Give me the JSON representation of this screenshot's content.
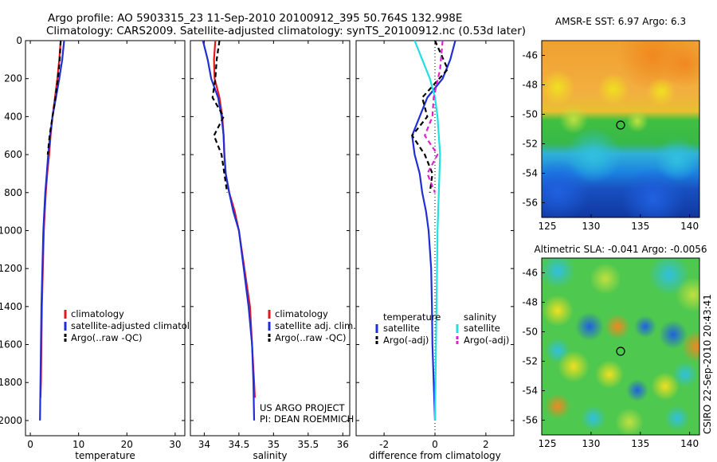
{
  "header": {
    "line1": "Argo profile: AO 5903315_23 11-Sep-2010 20100912_395 50.764S 132.998E",
    "line2": "Climatology: CARS2009. Satellite-adjusted climatology: synTS_20100912.nc (0.53d later)"
  },
  "side_credit": "CSIRO 22-Sep-2010 20:43:41",
  "project_credit": [
    "US ARGO PROJECT",
    "PI: DEAN ROEMMICH"
  ],
  "colors": {
    "climatology": "#e8171c",
    "satellite": "#1f2fd6",
    "argo": "#000000",
    "salinity_satellite": "#22e0e0",
    "salinity_argo": "#e020d0"
  },
  "chart_data": [
    {
      "type": "line",
      "name": "temperature-profile",
      "xlabel": "temperature",
      "xlim": [
        -1,
        32
      ],
      "ylim": [
        2080,
        0
      ],
      "xticks": [
        0,
        10,
        20,
        30
      ],
      "yticks": [
        0,
        200,
        400,
        600,
        800,
        1000,
        1200,
        1400,
        1600,
        1800,
        2000
      ],
      "legend": [
        "climatology",
        "satellite-adjusted climatology",
        "Argo(..raw -QC)"
      ],
      "series": [
        {
          "name": "climatology",
          "color": "#e8171c",
          "dash": "",
          "x": [
            6.3,
            6.0,
            5.6,
            5.1,
            4.6,
            4.2,
            3.9,
            3.5,
            3.2,
            3.0,
            2.8,
            2.6,
            2.4,
            2.3,
            2.2,
            2.1
          ],
          "y": [
            0,
            100,
            200,
            300,
            400,
            500,
            600,
            700,
            800,
            900,
            1000,
            1200,
            1400,
            1600,
            1800,
            1880
          ]
        },
        {
          "name": "satellite-adjusted climatology",
          "color": "#1f2fd6",
          "dash": "",
          "x": [
            7.0,
            6.6,
            6.0,
            5.3,
            4.6,
            4.1,
            3.7,
            3.4,
            3.1,
            2.9,
            2.7,
            2.5,
            2.3,
            2.2,
            2.1,
            2.0
          ],
          "y": [
            0,
            100,
            200,
            300,
            400,
            500,
            600,
            700,
            800,
            900,
            1000,
            1200,
            1400,
            1600,
            1800,
            2000
          ]
        },
        {
          "name": "Argo(..raw -QC)",
          "color": "#000000",
          "dash": "6,4",
          "x": [
            6.3,
            6.1,
            5.7,
            5.2,
            4.6,
            4.0,
            3.6
          ],
          "y": [
            0,
            100,
            200,
            300,
            400,
            500,
            600
          ]
        }
      ]
    },
    {
      "type": "line",
      "name": "salinity-profile",
      "xlabel": "salinity",
      "xlim": [
        33.8,
        36.1
      ],
      "ylim": [
        2080,
        0
      ],
      "xticks": [
        34,
        34.5,
        35,
        35.5,
        36
      ],
      "xticklabels": [
        "34",
        "34.5",
        "35",
        "35.5",
        "36"
      ],
      "legend": [
        "climatology",
        "satellite adj. clim.",
        "Argo(..raw -QC)"
      ],
      "series": [
        {
          "name": "climatology",
          "color": "#e8171c",
          "dash": "",
          "x": [
            34.16,
            34.14,
            34.15,
            34.22,
            34.26,
            34.28,
            34.29,
            34.31,
            34.36,
            34.44,
            34.5,
            34.58,
            34.66,
            34.69,
            34.72,
            34.73
          ],
          "y": [
            0,
            100,
            200,
            300,
            400,
            500,
            600,
            700,
            800,
            900,
            1000,
            1200,
            1400,
            1600,
            1800,
            1880
          ]
        },
        {
          "name": "satellite adj. clim.",
          "color": "#1f2fd6",
          "dash": "",
          "x": [
            33.98,
            34.05,
            34.1,
            34.2,
            34.25,
            34.28,
            34.29,
            34.31,
            34.36,
            34.42,
            34.5,
            34.57,
            34.64,
            34.69,
            34.71,
            34.72
          ],
          "y": [
            0,
            100,
            200,
            300,
            400,
            500,
            600,
            700,
            800,
            900,
            1000,
            1200,
            1400,
            1600,
            1800,
            2000
          ]
        },
        {
          "name": "Argo(..raw -QC)",
          "color": "#000000",
          "dash": "6,4",
          "x": [
            34.22,
            34.18,
            34.16,
            34.12,
            34.28,
            34.14,
            34.25,
            34.29,
            34.33
          ],
          "y": [
            0,
            100,
            200,
            300,
            400,
            500,
            600,
            700,
            800
          ]
        }
      ]
    },
    {
      "type": "line",
      "name": "difference-profile",
      "xlabel": "difference from climatology",
      "xlim": [
        -3.1,
        3.1
      ],
      "ylim": [
        2080,
        0
      ],
      "xticks": [
        -2,
        0,
        2
      ],
      "legend_left_title": "temperature",
      "legend_right_title": "salinity",
      "legend_left": [
        "satellite",
        "Argo(-adj)"
      ],
      "legend_right": [
        "satellite",
        "Argo(-adj)"
      ],
      "series": [
        {
          "name": "temperature satellite",
          "color": "#1f2fd6",
          "dash": "",
          "x": [
            0.8,
            0.6,
            0.3,
            -0.3,
            -0.6,
            -0.9,
            -0.8,
            -0.6,
            -0.5,
            -0.35,
            -0.25,
            -0.15,
            -0.12,
            -0.1,
            -0.05,
            0.0
          ],
          "y": [
            0,
            100,
            200,
            300,
            400,
            500,
            600,
            700,
            800,
            900,
            1000,
            1200,
            1400,
            1600,
            1800,
            2000
          ]
        },
        {
          "name": "temperature Argo(-adj)",
          "color": "#000000",
          "dash": "6,4",
          "x": [
            0.0,
            0.5,
            -0.5,
            -0.3,
            -0.9,
            -0.4,
            -0.1,
            -0.2
          ],
          "y": [
            0,
            150,
            300,
            400,
            500,
            600,
            700,
            800
          ]
        },
        {
          "name": "salinity satellite",
          "color": "#22e0e0",
          "dash": "",
          "x": [
            -0.8,
            -0.5,
            -0.2,
            0.0,
            0.1,
            0.15,
            0.2,
            0.15,
            0.1,
            0.05,
            0.0
          ],
          "y": [
            0,
            100,
            200,
            300,
            400,
            500,
            600,
            800,
            1000,
            1500,
            2000
          ]
        },
        {
          "name": "salinity Argo(-adj)",
          "color": "#e020d0",
          "dash": "6,4",
          "x": [
            0.3,
            0.2,
            -0.05,
            -0.1,
            -0.4,
            0.1,
            -0.3,
            0.0
          ],
          "y": [
            0,
            150,
            300,
            400,
            500,
            600,
            700,
            800
          ]
        }
      ]
    },
    {
      "type": "heatmap",
      "name": "amsre-sst-map",
      "title": "AMSR-E SST: 6.97  Argo: 6.3",
      "xlim": [
        125,
        141
      ],
      "ylim": [
        -57,
        -45
      ],
      "xticks": [
        125,
        130,
        135,
        140
      ],
      "yticks": [
        -46,
        -48,
        -50,
        -52,
        -54,
        -56
      ],
      "marker": {
        "lon": 133.0,
        "lat": -50.76
      },
      "bands": [
        {
          "lat_top": -45,
          "lat_bottom": -49.5,
          "color": "#f4a020"
        },
        {
          "lat_top": -49.5,
          "lat_bottom": -51.8,
          "color": "#40c040"
        },
        {
          "lat_top": -51.8,
          "lat_bottom": -53.5,
          "color": "#1a90e0"
        },
        {
          "lat_top": -53.5,
          "lat_bottom": -57,
          "color": "#1840b0"
        }
      ]
    },
    {
      "type": "heatmap",
      "name": "altimetric-sla-map",
      "title": "Altimetric SLA: -0.041  Argo: -0.0056",
      "xlim": [
        125,
        141
      ],
      "ylim": [
        -57,
        -45
      ],
      "xticks": [
        125,
        130,
        135,
        140
      ],
      "yticks": [
        -46,
        -48,
        -50,
        -52,
        -54,
        -56
      ],
      "marker": {
        "lon": 133.0,
        "lat": -50.76
      },
      "background": "#50c850"
    }
  ]
}
